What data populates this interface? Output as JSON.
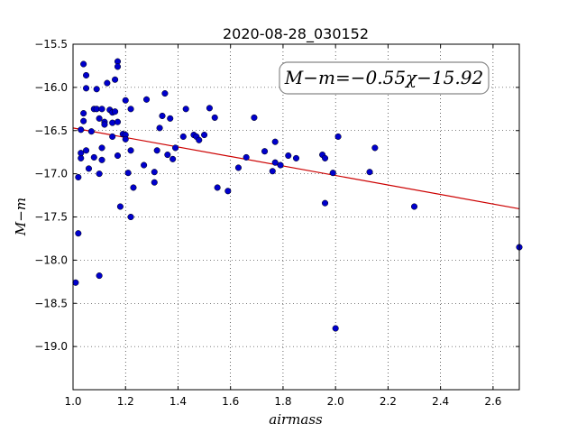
{
  "chart_data": {
    "type": "scatter",
    "title": "2020-08-28_030152",
    "xlabel": "airmass",
    "ylabel": "M−m",
    "xlim": [
      1.0,
      2.7
    ],
    "ylim": [
      -15.5,
      -19.5
    ],
    "y_inverted": true,
    "grid": true,
    "x_ticks": [
      "1.0",
      "1.2",
      "1.4",
      "1.6",
      "1.8",
      "2.0",
      "2.2",
      "2.4",
      "2.6"
    ],
    "y_ticks": [
      "−15.5",
      "−16.0",
      "−16.5",
      "−17.0",
      "−17.5",
      "−18.0",
      "−18.5",
      "−19.0"
    ],
    "annotation": "M−m=−0.55χ−15.92",
    "point_color": "#0000cc",
    "fit_color": "#cc0000",
    "fit": {
      "slope": -0.55,
      "intercept": -15.92,
      "x_range": [
        1.0,
        2.7
      ]
    },
    "points": [
      [
        1.01,
        -18.26
      ],
      [
        1.02,
        -17.04
      ],
      [
        1.02,
        -17.69
      ],
      [
        1.03,
        -16.82
      ],
      [
        1.03,
        -16.76
      ],
      [
        1.03,
        -16.49
      ],
      [
        1.04,
        -16.3
      ],
      [
        1.04,
        -16.39
      ],
      [
        1.04,
        -15.73
      ],
      [
        1.05,
        -15.86
      ],
      [
        1.05,
        -16.01
      ],
      [
        1.05,
        -16.73
      ],
      [
        1.06,
        -16.94
      ],
      [
        1.07,
        -16.51
      ],
      [
        1.08,
        -16.25
      ],
      [
        1.08,
        -16.81
      ],
      [
        1.09,
        -16.02
      ],
      [
        1.09,
        -16.25
      ],
      [
        1.1,
        -16.36
      ],
      [
        1.1,
        -17.0
      ],
      [
        1.1,
        -18.18
      ],
      [
        1.11,
        -16.25
      ],
      [
        1.11,
        -16.84
      ],
      [
        1.11,
        -16.7
      ],
      [
        1.12,
        -16.4
      ],
      [
        1.12,
        -16.43
      ],
      [
        1.13,
        -15.95
      ],
      [
        1.14,
        -16.26
      ],
      [
        1.15,
        -16.29
      ],
      [
        1.15,
        -16.41
      ],
      [
        1.15,
        -16.57
      ],
      [
        1.16,
        -15.91
      ],
      [
        1.16,
        -16.28
      ],
      [
        1.17,
        -16.4
      ],
      [
        1.17,
        -15.7
      ],
      [
        1.17,
        -15.76
      ],
      [
        1.17,
        -16.79
      ],
      [
        1.18,
        -17.38
      ],
      [
        1.19,
        -16.54
      ],
      [
        1.2,
        -16.55
      ],
      [
        1.2,
        -16.6
      ],
      [
        1.2,
        -16.15
      ],
      [
        1.21,
        -16.99
      ],
      [
        1.22,
        -17.5
      ],
      [
        1.22,
        -16.73
      ],
      [
        1.22,
        -16.25
      ],
      [
        1.23,
        -17.16
      ],
      [
        1.27,
        -16.9
      ],
      [
        1.28,
        -16.14
      ],
      [
        1.31,
        -16.98
      ],
      [
        1.31,
        -17.1
      ],
      [
        1.32,
        -16.73
      ],
      [
        1.33,
        -16.47
      ],
      [
        1.34,
        -16.33
      ],
      [
        1.35,
        -16.07
      ],
      [
        1.36,
        -16.78
      ],
      [
        1.37,
        -16.36
      ],
      [
        1.38,
        -16.83
      ],
      [
        1.39,
        -16.7
      ],
      [
        1.42,
        -16.57
      ],
      [
        1.43,
        -16.25
      ],
      [
        1.46,
        -16.55
      ],
      [
        1.47,
        -16.57
      ],
      [
        1.48,
        -16.61
      ],
      [
        1.5,
        -16.55
      ],
      [
        1.52,
        -16.24
      ],
      [
        1.54,
        -16.35
      ],
      [
        1.55,
        -17.16
      ],
      [
        1.59,
        -17.2
      ],
      [
        1.63,
        -16.93
      ],
      [
        1.66,
        -16.81
      ],
      [
        1.69,
        -16.35
      ],
      [
        1.73,
        -16.74
      ],
      [
        1.76,
        -16.97
      ],
      [
        1.77,
        -16.63
      ],
      [
        1.77,
        -16.87
      ],
      [
        1.79,
        -16.9
      ],
      [
        1.82,
        -16.79
      ],
      [
        1.85,
        -16.82
      ],
      [
        1.95,
        -16.78
      ],
      [
        1.96,
        -16.82
      ],
      [
        1.96,
        -17.34
      ],
      [
        1.99,
        -16.99
      ],
      [
        2.0,
        -18.79
      ],
      [
        2.01,
        -16.57
      ],
      [
        2.13,
        -16.98
      ],
      [
        2.15,
        -16.7
      ],
      [
        2.3,
        -17.38
      ],
      [
        2.7,
        -17.85
      ]
    ]
  }
}
